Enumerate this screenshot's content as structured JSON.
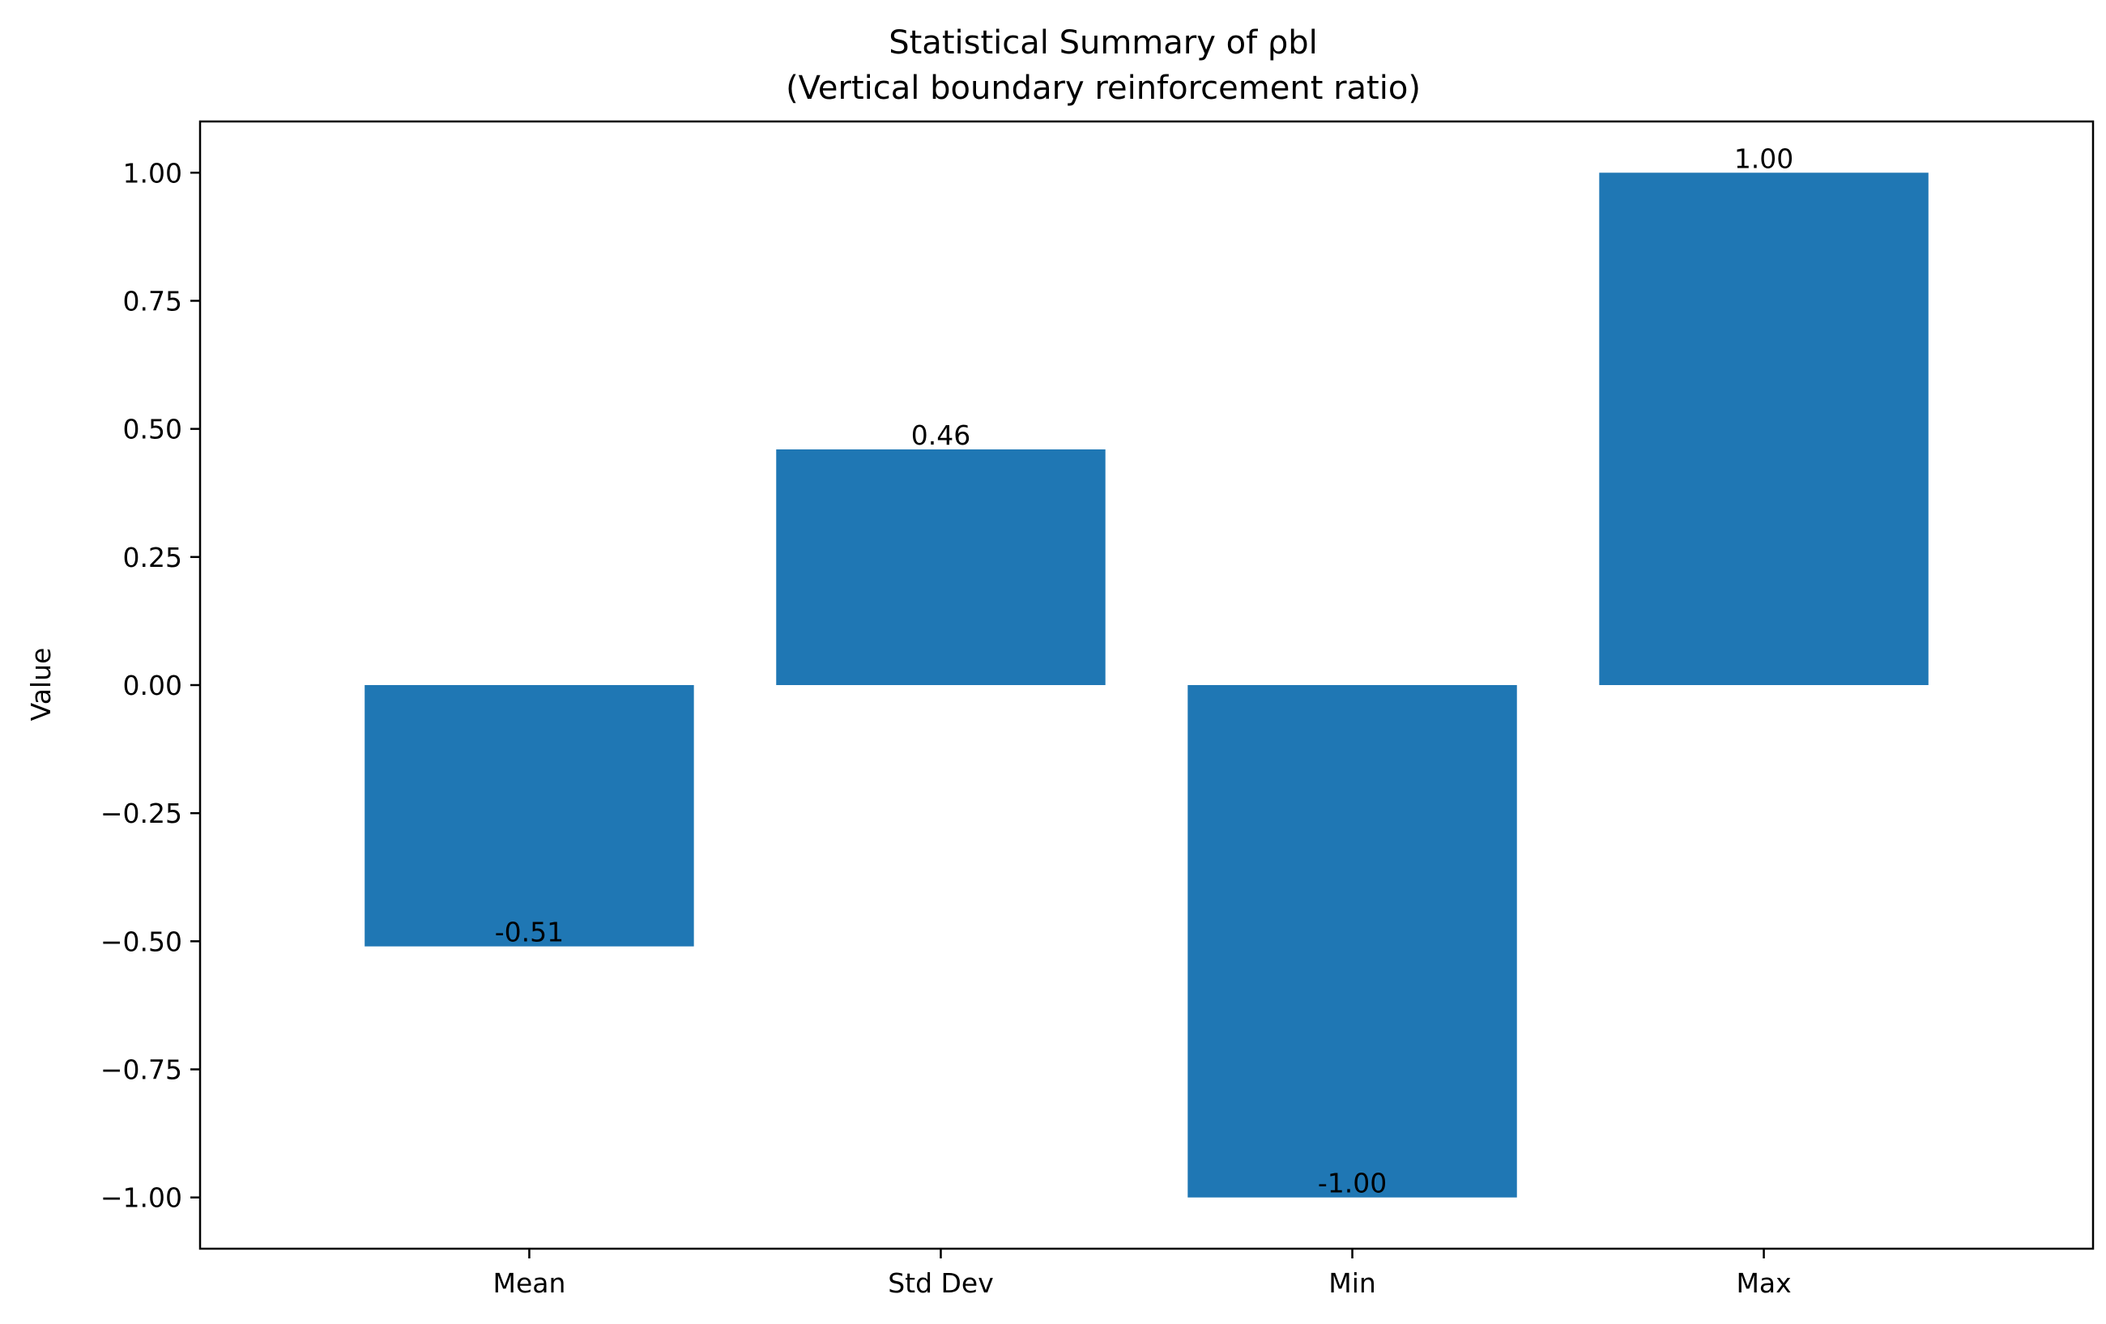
{
  "chart_data": {
    "type": "bar",
    "title": "Statistical Summary of ρbl",
    "subtitle": "(Vertical boundary reinforcement ratio)",
    "xlabel": "",
    "ylabel": "Value",
    "categories": [
      "Mean",
      "Std Dev",
      "Min",
      "Max"
    ],
    "values": [
      -0.51,
      0.46,
      -1.0,
      1.0
    ],
    "data_labels": [
      "-0.51",
      "0.46",
      "-1.00",
      "1.00"
    ],
    "ylim": [
      -1.1,
      1.1
    ],
    "yticks": [
      -1.0,
      -0.75,
      -0.5,
      -0.25,
      0.0,
      0.25,
      0.5,
      0.75,
      1.0
    ],
    "ytick_labels": [
      "−1.00",
      "−0.75",
      "−0.50",
      "−0.25",
      "0.00",
      "0.25",
      "0.50",
      "0.75",
      "1.00"
    ],
    "bar_color": "#1f77b4",
    "grid": false,
    "legend": "none"
  }
}
